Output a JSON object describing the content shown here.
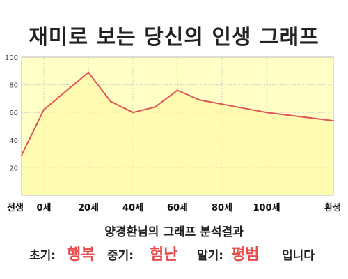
{
  "title": "재미로 보는 당신의 인생 그래프",
  "result_title": "양경환님의 그래프 분석결과",
  "summary": {
    "early_label": "초기:",
    "early_value": "행복",
    "middle_label": "중기:",
    "middle_value": "험난",
    "late_label": "말기:",
    "late_value": "평범",
    "suffix": "입니다"
  },
  "colors": {
    "line": "#e05555",
    "fill": "#ffffc6",
    "highlight": "#e74c4c"
  },
  "chart_data": {
    "type": "area",
    "title": "재미로 보는 당신의 인생 그래프",
    "xlabel": "",
    "ylabel": "",
    "x_ticks": [
      "전생",
      "0세",
      "20세",
      "40세",
      "60세",
      "80세",
      "100세",
      "환생"
    ],
    "y_ticks": [
      "100",
      "80",
      "60",
      "40",
      "20"
    ],
    "ylim": [
      0,
      100
    ],
    "grid": true,
    "x": [
      -0.5,
      0,
      1,
      1.5,
      2,
      2.5,
      3,
      3.5,
      4,
      5,
      6,
      6.5
    ],
    "values": [
      29,
      62,
      89,
      68,
      60,
      64,
      76,
      69,
      66,
      60,
      56,
      54
    ]
  }
}
